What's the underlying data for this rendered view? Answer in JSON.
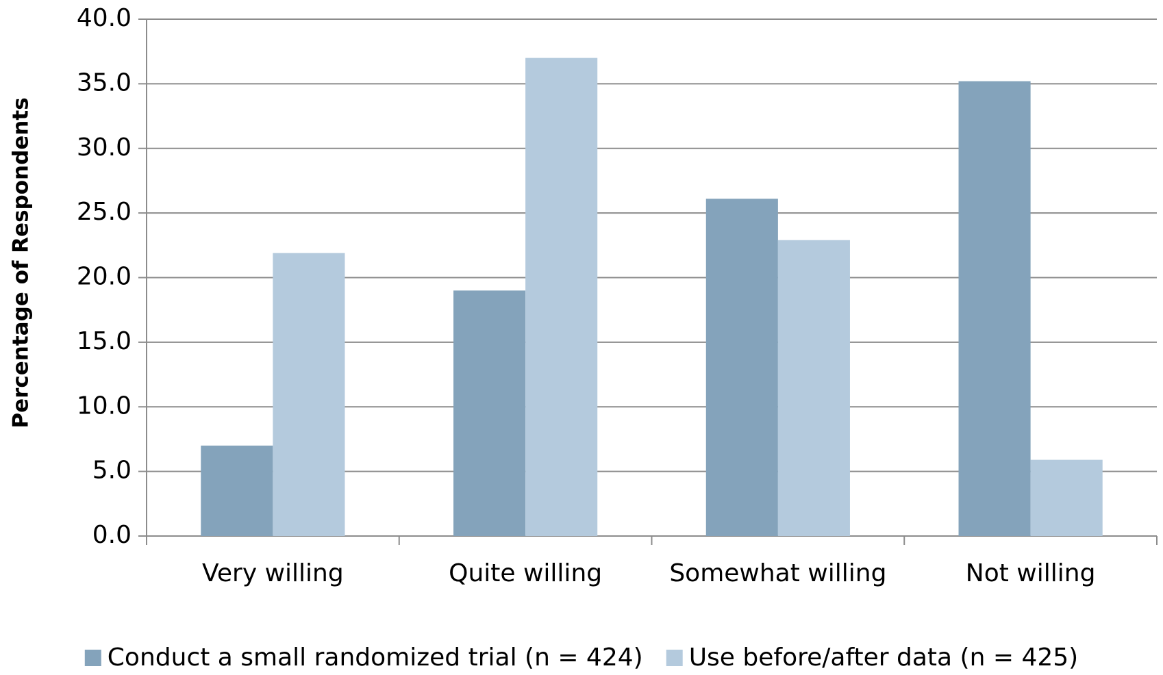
{
  "chart_data": {
    "type": "bar",
    "y_label": "Percentage of Respondents",
    "categories": [
      "Very willing",
      "Quite willing",
      "Somewhat willing",
      "Not willing"
    ],
    "series": [
      {
        "name": "Conduct a small randomized trial (n = 424)",
        "color": "#84a3bb",
        "values": [
          7.0,
          19.0,
          26.1,
          35.2
        ]
      },
      {
        "name": "Use before/after data (n = 425)",
        "color": "#b4cadd",
        "values": [
          21.9,
          37.0,
          22.9,
          5.9
        ]
      }
    ],
    "ylim": [
      0,
      40
    ],
    "yticks": [
      {
        "value": 0,
        "label": "0.0"
      },
      {
        "value": 5,
        "label": "5.0"
      },
      {
        "value": 10,
        "label": "10.0"
      },
      {
        "value": 15,
        "label": "15.0"
      },
      {
        "value": 20,
        "label": "20.0"
      },
      {
        "value": 25,
        "label": "25.0"
      },
      {
        "value": 30,
        "label": "30.0"
      },
      {
        "value": 35,
        "label": "35.0"
      },
      {
        "value": 40,
        "label": "40.0"
      }
    ],
    "grid": true,
    "legend": "bottom"
  }
}
